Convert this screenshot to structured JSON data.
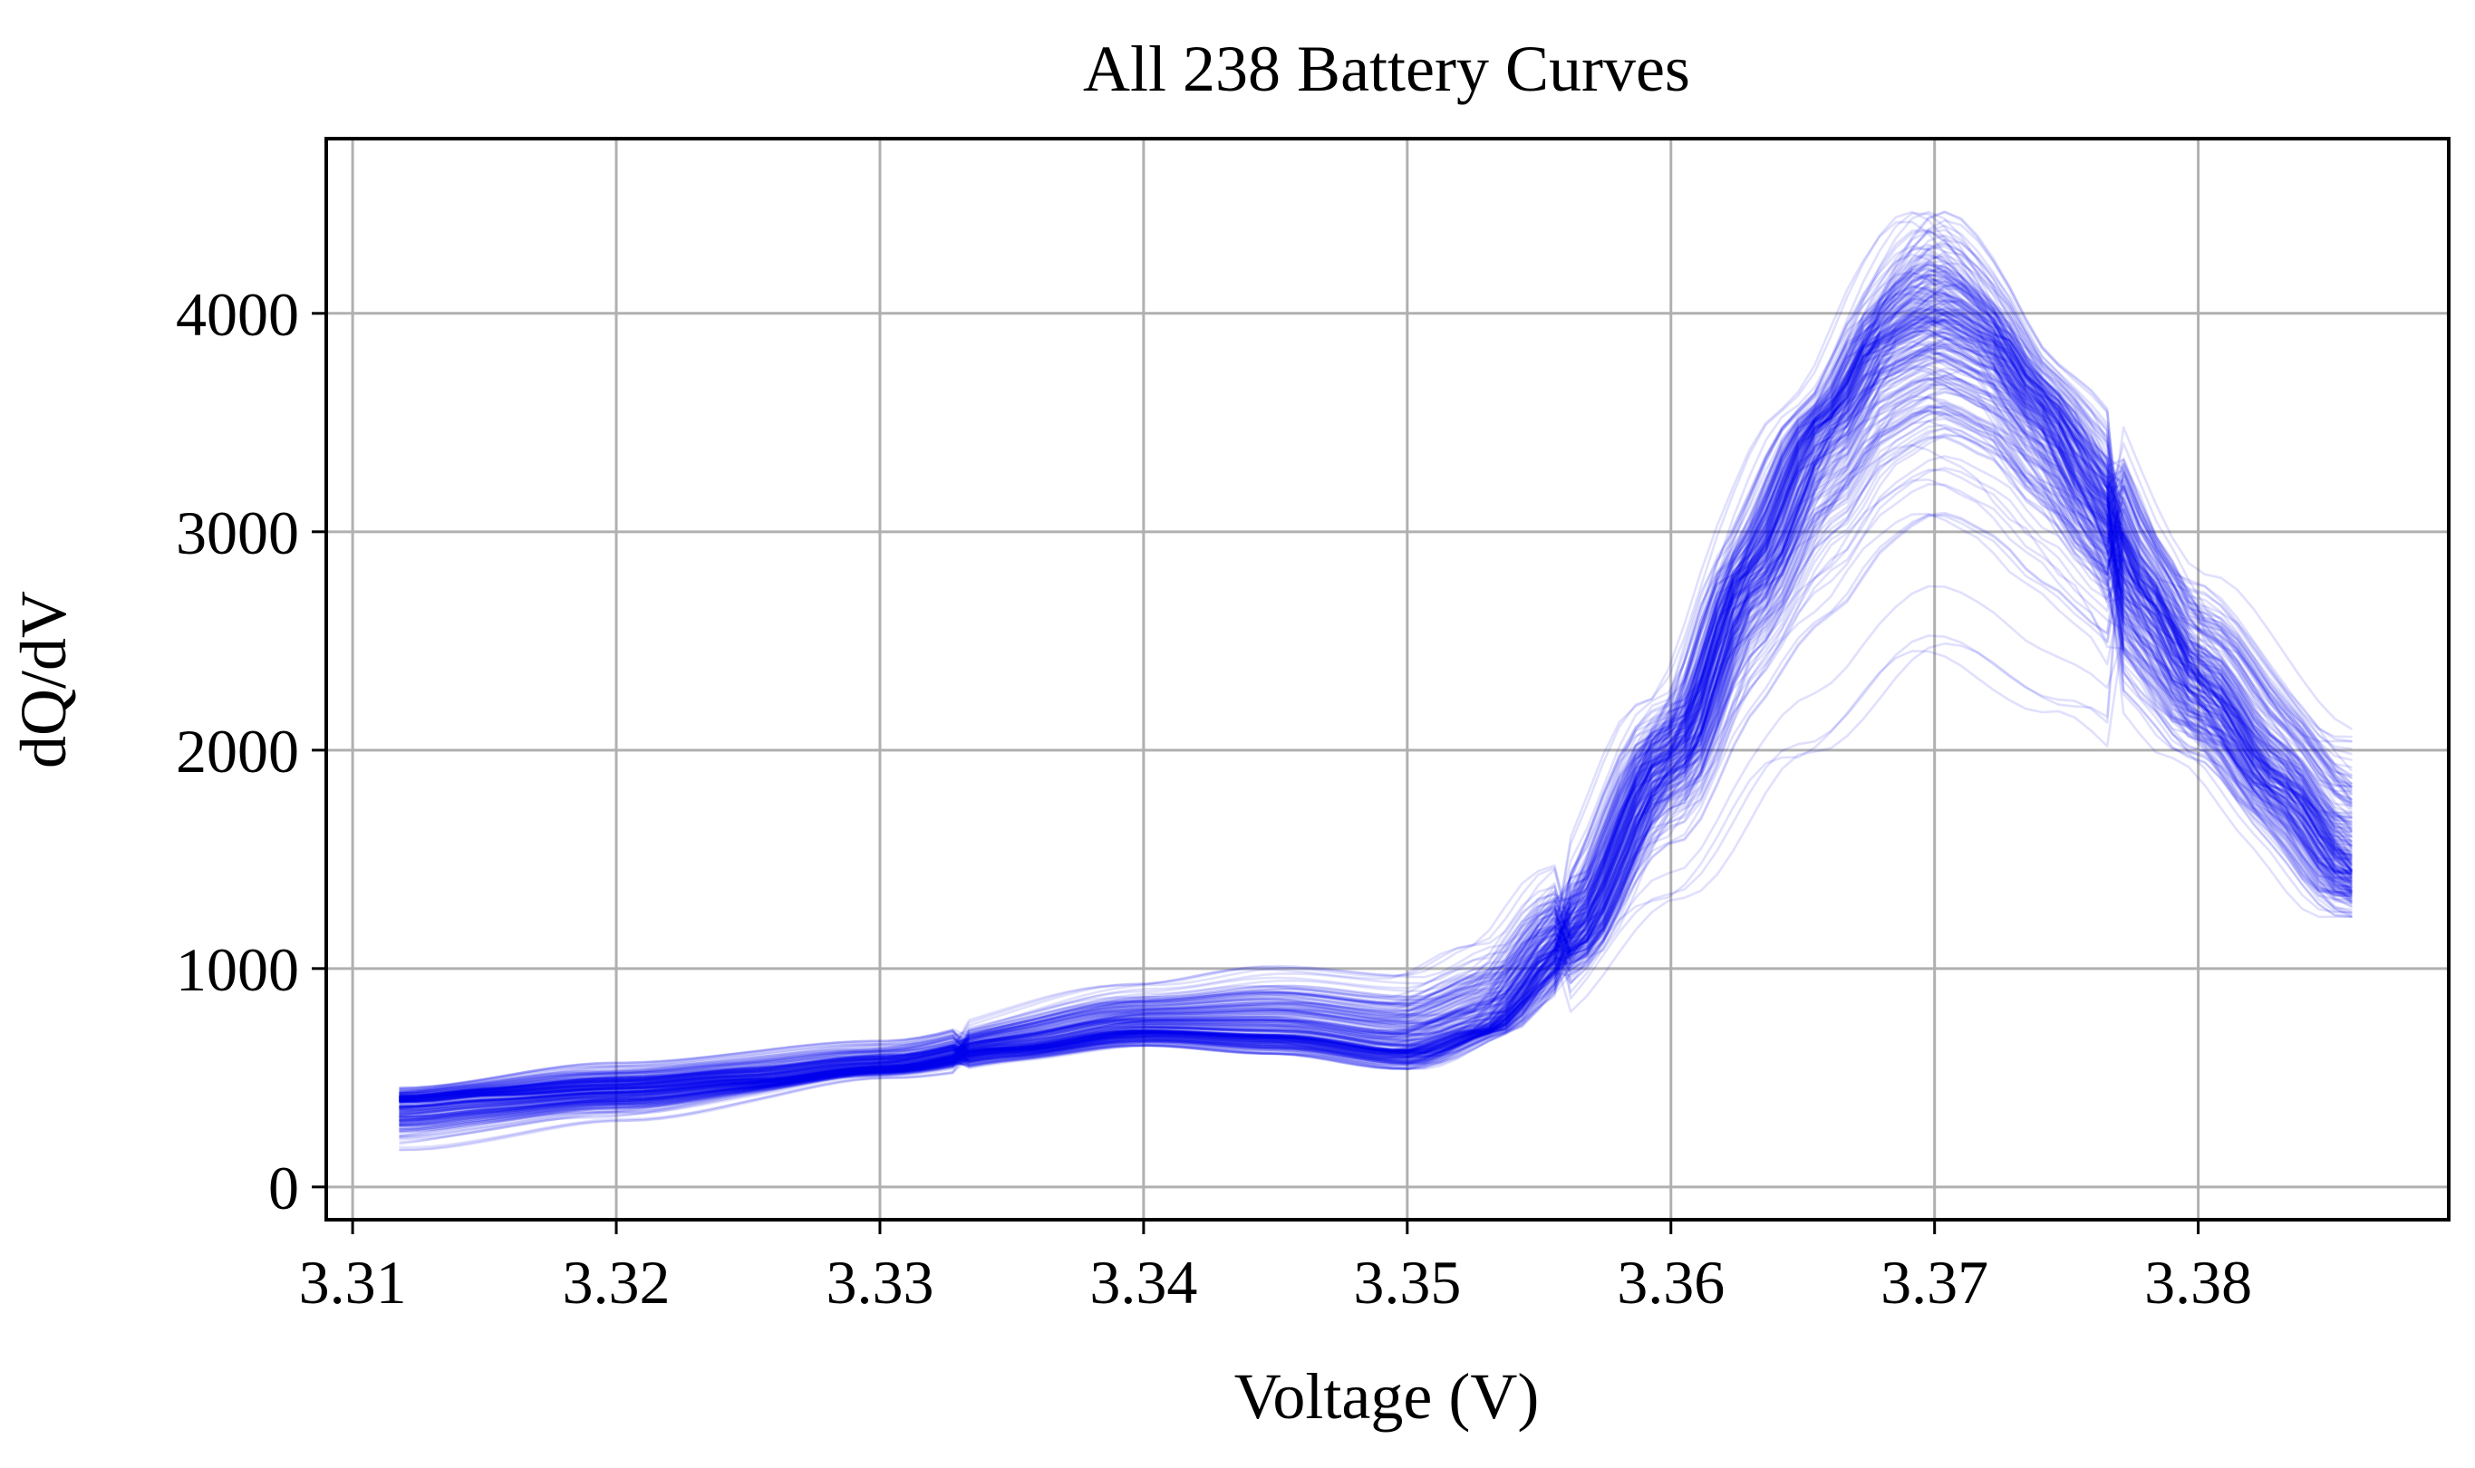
{
  "chart_data": {
    "type": "line",
    "title": "All 238 Battery Curves",
    "xlabel": "Voltage (V)",
    "ylabel": "dQ/dV",
    "xlim": [
      3.309,
      3.3895
    ],
    "ylim": [
      -150,
      4800
    ],
    "x_ticks": [
      3.31,
      3.32,
      3.33,
      3.34,
      3.35,
      3.36,
      3.37,
      3.38
    ],
    "x_tick_labels": [
      "3.31",
      "3.32",
      "3.33",
      "3.34",
      "3.35",
      "3.36",
      "3.37",
      "3.38"
    ],
    "y_ticks": [
      0,
      1000,
      2000,
      3000,
      4000
    ],
    "y_tick_labels": [
      "0",
      "1000",
      "2000",
      "3000",
      "4000"
    ],
    "grid": true,
    "series_count": 238,
    "series_color": "#0000ee",
    "series_opacity": 0.12,
    "x_range": [
      3.3118,
      3.3858
    ],
    "representative_curve": {
      "x": [
        3.3118,
        3.315,
        3.32,
        3.325,
        3.33,
        3.335,
        3.34,
        3.345,
        3.35,
        3.353,
        3.356,
        3.36,
        3.363,
        3.366,
        3.368,
        3.37,
        3.372,
        3.374,
        3.376,
        3.378,
        3.38,
        3.383,
        3.3858
      ],
      "y": [
        390,
        420,
        450,
        490,
        550,
        640,
        720,
        700,
        630,
        720,
        1100,
        1950,
        2800,
        3500,
        3850,
        3950,
        3850,
        3550,
        3150,
        2700,
        2300,
        1850,
        1450
      ]
    },
    "envelope_min": {
      "x": [
        3.3118,
        3.32,
        3.33,
        3.34,
        3.345,
        3.35,
        3.355,
        3.36,
        3.365,
        3.37,
        3.375,
        3.38,
        3.3858
      ],
      "y": [
        90,
        250,
        480,
        600,
        550,
        480,
        780,
        1350,
        2050,
        2550,
        2250,
        1800,
        1130
      ]
    },
    "envelope_max": {
      "x": [
        3.3118,
        3.32,
        3.33,
        3.34,
        3.345,
        3.35,
        3.353,
        3.356,
        3.36,
        3.365,
        3.37,
        3.375,
        3.38,
        3.3858
      ],
      "y": [
        460,
        580,
        680,
        950,
        1040,
        1000,
        1150,
        1500,
        2300,
        3600,
        4600,
        3800,
        2850,
        2150
      ]
    }
  }
}
